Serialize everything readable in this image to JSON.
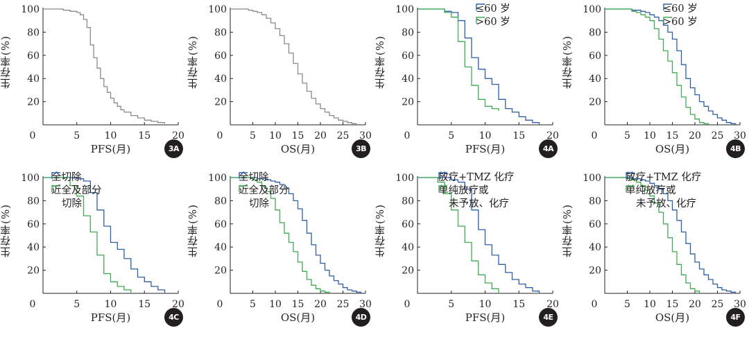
{
  "colors": {
    "gray": "#8a8a8a",
    "blue": "#2c5fa8",
    "green": "#3eaa52",
    "text": "#231f20"
  },
  "chart_data": [
    {
      "id": "3A",
      "type": "line",
      "step": true,
      "xlabel": "PFS(月)",
      "ylabel": "生存率(%)",
      "xlim": [
        0,
        20
      ],
      "ylim": [
        0,
        100
      ],
      "xticks": [
        0,
        5,
        10,
        15,
        20
      ],
      "yticks": [
        20,
        40,
        60,
        80,
        100
      ],
      "legend": [],
      "series": [
        {
          "color": "gray",
          "x": [
            0,
            2,
            3,
            4,
            5,
            5.5,
            6,
            6.5,
            7,
            7.5,
            8,
            8.5,
            9,
            9.5,
            10,
            10.5,
            11,
            11.5,
            12,
            13,
            14,
            15,
            16,
            17,
            18
          ],
          "y": [
            100,
            100,
            99,
            98,
            97,
            95,
            91,
            84,
            69,
            58,
            49,
            40,
            33,
            28,
            23,
            19,
            16,
            13,
            11,
            8,
            6,
            4,
            3,
            2,
            1
          ]
        }
      ]
    },
    {
      "id": "3B",
      "type": "line",
      "step": true,
      "xlabel": "OS(月)",
      "ylabel": "生存率(%)",
      "xlim": [
        0,
        30
      ],
      "ylim": [
        0,
        100
      ],
      "xticks": [
        0,
        5,
        10,
        15,
        20,
        25,
        30
      ],
      "yticks": [
        20,
        40,
        60,
        80,
        100
      ],
      "legend": [],
      "series": [
        {
          "color": "gray",
          "x": [
            0,
            3,
            4,
            5,
            6,
            7,
            8,
            9,
            10,
            11,
            12,
            13,
            14,
            15,
            16,
            17,
            18,
            19,
            20,
            21,
            22,
            23,
            24,
            25,
            26,
            27,
            28
          ],
          "y": [
            100,
            100,
            99,
            98,
            97,
            95,
            92,
            88,
            83,
            77,
            70,
            62,
            53,
            44,
            36,
            29,
            23,
            18,
            14,
            11,
            8,
            6,
            4,
            3,
            2,
            1,
            0
          ]
        }
      ]
    },
    {
      "id": "4A",
      "type": "line",
      "step": true,
      "xlabel": "PFS(月)",
      "ylabel": "生存率(%)",
      "xlim": [
        0,
        20
      ],
      "ylim": [
        0,
        100
      ],
      "xticks": [
        0,
        5,
        10,
        15,
        20
      ],
      "yticks": [
        20,
        40,
        60,
        80,
        100
      ],
      "legend": [
        {
          "label": "≤60 岁",
          "color": "blue"
        },
        {
          "label": ">60 岁",
          "color": "green"
        }
      ],
      "series": [
        {
          "color": "blue",
          "x": [
            0,
            3,
            4,
            5,
            6,
            7,
            8,
            9,
            10,
            11,
            12,
            13,
            14,
            15,
            16,
            17,
            18
          ],
          "y": [
            100,
            100,
            98,
            97,
            90,
            75,
            58,
            48,
            40,
            35,
            22,
            14,
            11,
            7,
            4,
            2,
            0
          ]
        },
        {
          "color": "green",
          "x": [
            0,
            3,
            4,
            5,
            6,
            7,
            8,
            9,
            10,
            11,
            12
          ],
          "y": [
            100,
            100,
            97,
            93,
            72,
            50,
            34,
            22,
            16,
            14,
            12
          ]
        }
      ]
    },
    {
      "id": "4B",
      "type": "line",
      "step": true,
      "xlabel": "OS(月)",
      "ylabel": "生存率(%)",
      "xlim": [
        0,
        30
      ],
      "ylim": [
        0,
        100
      ],
      "xticks": [
        0,
        5,
        10,
        15,
        20,
        25,
        30
      ],
      "yticks": [
        20,
        40,
        60,
        80,
        100
      ],
      "legend": [
        {
          "label": "≤60 岁",
          "color": "blue"
        },
        {
          "label": ">60 岁",
          "color": "green"
        }
      ],
      "series": [
        {
          "color": "blue",
          "x": [
            0,
            5,
            6,
            7,
            8,
            9,
            10,
            11,
            12,
            13,
            14,
            15,
            16,
            17,
            18,
            19,
            20,
            21,
            22,
            23,
            24,
            25,
            26,
            27,
            28,
            29
          ],
          "y": [
            100,
            100,
            99,
            99,
            98,
            97,
            95,
            93,
            90,
            86,
            80,
            74,
            64,
            52,
            40,
            32,
            26,
            20,
            16,
            12,
            9,
            6,
            4,
            2,
            1,
            0
          ]
        },
        {
          "color": "green",
          "x": [
            0,
            5,
            6,
            7,
            8,
            9,
            10,
            11,
            12,
            13,
            14,
            15,
            16,
            17,
            18,
            19,
            20,
            21,
            22,
            23
          ],
          "y": [
            100,
            100,
            98,
            97,
            95,
            93,
            90,
            83,
            74,
            64,
            55,
            45,
            34,
            24,
            15,
            9,
            5,
            2,
            1,
            0
          ]
        }
      ]
    },
    {
      "id": "4C",
      "type": "line",
      "step": true,
      "xlabel": "PFS(月)",
      "ylabel": "生存率(%)",
      "xlim": [
        0,
        20
      ],
      "ylim": [
        0,
        100
      ],
      "xticks": [
        0,
        5,
        10,
        15,
        20
      ],
      "yticks": [
        20,
        40,
        60,
        80,
        100
      ],
      "legend": [
        {
          "label": "全切除",
          "color": "blue"
        },
        {
          "label": "近全及部分",
          "label2": "切除",
          "color": "green"
        }
      ],
      "series": [
        {
          "color": "blue",
          "x": [
            0,
            4,
            5,
            6,
            7,
            8,
            9,
            10,
            11,
            12,
            13,
            14,
            15,
            16,
            17,
            18
          ],
          "y": [
            100,
            100,
            99,
            97,
            87,
            72,
            58,
            44,
            38,
            30,
            21,
            14,
            10,
            6,
            3,
            0
          ]
        },
        {
          "color": "green",
          "x": [
            0,
            3,
            4,
            5,
            6,
            7,
            8,
            9,
            10,
            11,
            12,
            13
          ],
          "y": [
            100,
            100,
            93,
            84,
            67,
            53,
            33,
            17,
            10,
            6,
            3,
            0
          ]
        }
      ]
    },
    {
      "id": "4D",
      "type": "line",
      "step": true,
      "xlabel": "OS(月)",
      "ylabel": "生存率(%)",
      "xlim": [
        0,
        30
      ],
      "ylim": [
        0,
        100
      ],
      "xticks": [
        0,
        5,
        10,
        15,
        20,
        25,
        30
      ],
      "yticks": [
        20,
        40,
        60,
        80,
        100
      ],
      "legend": [
        {
          "label": "全切除",
          "color": "blue"
        },
        {
          "label": "近全及部分",
          "label2": "切除",
          "color": "green"
        }
      ],
      "series": [
        {
          "color": "blue",
          "x": [
            0,
            5,
            6,
            7,
            8,
            9,
            10,
            11,
            12,
            13,
            14,
            15,
            16,
            17,
            18,
            19,
            20,
            21,
            22,
            23,
            24,
            25,
            26,
            27,
            28,
            29
          ],
          "y": [
            100,
            100,
            99,
            99,
            98,
            97,
            96,
            94,
            91,
            86,
            80,
            73,
            63,
            52,
            42,
            33,
            26,
            20,
            15,
            11,
            8,
            5,
            3,
            2,
            1,
            0
          ]
        },
        {
          "color": "green",
          "x": [
            0,
            4,
            5,
            6,
            7,
            8,
            9,
            10,
            11,
            12,
            13,
            14,
            15,
            16,
            17,
            18,
            19,
            20,
            21,
            22
          ],
          "y": [
            100,
            100,
            98,
            96,
            92,
            88,
            82,
            72,
            61,
            52,
            44,
            36,
            27,
            19,
            12,
            7,
            4,
            2,
            1,
            0
          ]
        }
      ]
    },
    {
      "id": "4E",
      "type": "line",
      "step": true,
      "xlabel": "PFS(月)",
      "ylabel": "生存率(%)",
      "xlim": [
        0,
        20
      ],
      "ylim": [
        0,
        100
      ],
      "xticks": [
        0,
        5,
        10,
        15,
        20
      ],
      "yticks": [
        20,
        40,
        60,
        80,
        100
      ],
      "legend": [
        {
          "label": "放疗+TMZ 化疗",
          "color": "blue"
        },
        {
          "label": "单纯放疗或",
          "label2": "未予放、化疗",
          "color": "green"
        }
      ],
      "series": [
        {
          "color": "blue",
          "x": [
            0,
            4,
            5,
            6,
            7,
            8,
            9,
            10,
            11,
            12,
            13,
            14,
            15,
            16,
            17,
            18
          ],
          "y": [
            100,
            100,
            98,
            96,
            90,
            72,
            55,
            42,
            33,
            25,
            18,
            12,
            8,
            5,
            2,
            0
          ]
        },
        {
          "color": "green",
          "x": [
            0,
            2,
            3,
            4,
            5,
            6,
            7,
            8,
            9,
            10,
            11,
            12
          ],
          "y": [
            100,
            100,
            96,
            86,
            72,
            58,
            44,
            28,
            16,
            9,
            4,
            0
          ]
        }
      ]
    },
    {
      "id": "4F",
      "type": "line",
      "step": true,
      "xlabel": "OS(月)",
      "ylabel": "生存率(%)",
      "xlim": [
        0,
        30
      ],
      "ylim": [
        0,
        100
      ],
      "xticks": [
        0,
        5,
        10,
        15,
        20,
        25,
        30
      ],
      "yticks": [
        20,
        40,
        60,
        80,
        100
      ],
      "legend": [
        {
          "label": "放疗+TMZ 化疗",
          "color": "blue"
        },
        {
          "label": "单纯放疗或",
          "label2": "未予放、化疗",
          "color": "green"
        }
      ],
      "series": [
        {
          "color": "blue",
          "x": [
            0,
            5,
            6,
            7,
            8,
            9,
            10,
            11,
            12,
            13,
            14,
            15,
            16,
            17,
            18,
            19,
            20,
            21,
            22,
            23,
            24,
            25,
            26,
            27,
            28,
            29
          ],
          "y": [
            100,
            100,
            99,
            99,
            98,
            97,
            95,
            93,
            90,
            86,
            80,
            72,
            63,
            53,
            43,
            34,
            27,
            21,
            16,
            12,
            8,
            5,
            3,
            2,
            1,
            0
          ]
        },
        {
          "color": "green",
          "x": [
            0,
            4,
            5,
            6,
            7,
            8,
            9,
            10,
            11,
            12,
            13,
            14,
            15,
            16,
            17,
            18,
            19,
            20,
            21
          ],
          "y": [
            100,
            100,
            99,
            98,
            96,
            93,
            89,
            84,
            78,
            70,
            60,
            48,
            36,
            25,
            16,
            9,
            4,
            2,
            0
          ]
        }
      ]
    }
  ]
}
